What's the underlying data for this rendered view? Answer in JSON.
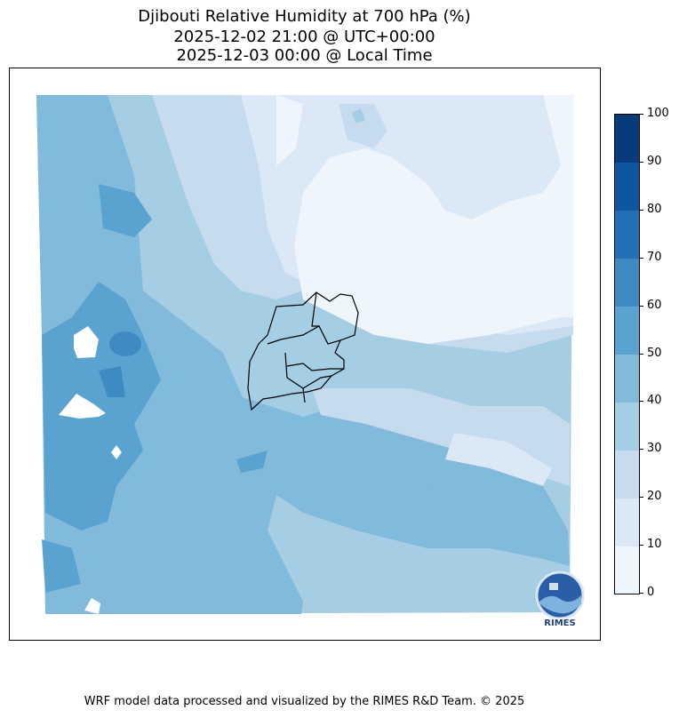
{
  "title": {
    "line1": "Djibouti Relative Humidity at 700 hPa (%)",
    "line2": "2025-12-02 21:00 @ UTC+00:00",
    "line3": "2025-12-03 00:00 @ Local Time"
  },
  "colorbar": {
    "min": 0,
    "max": 100,
    "ticks": [
      "0",
      "10",
      "20",
      "30",
      "40",
      "50",
      "60",
      "70",
      "80",
      "90",
      "100"
    ],
    "colors": [
      "#eff5fc",
      "#dbe8f5",
      "#c7dbef",
      "#a5cde3",
      "#82badb",
      "#5aa2cf",
      "#3e8bc3",
      "#216fb5",
      "#0d56a0",
      "#083b7a"
    ]
  },
  "logo": {
    "text": "RIMES"
  },
  "footer": "WRF model data processed and visualized by the RIMES R&D Team. © 2025"
}
